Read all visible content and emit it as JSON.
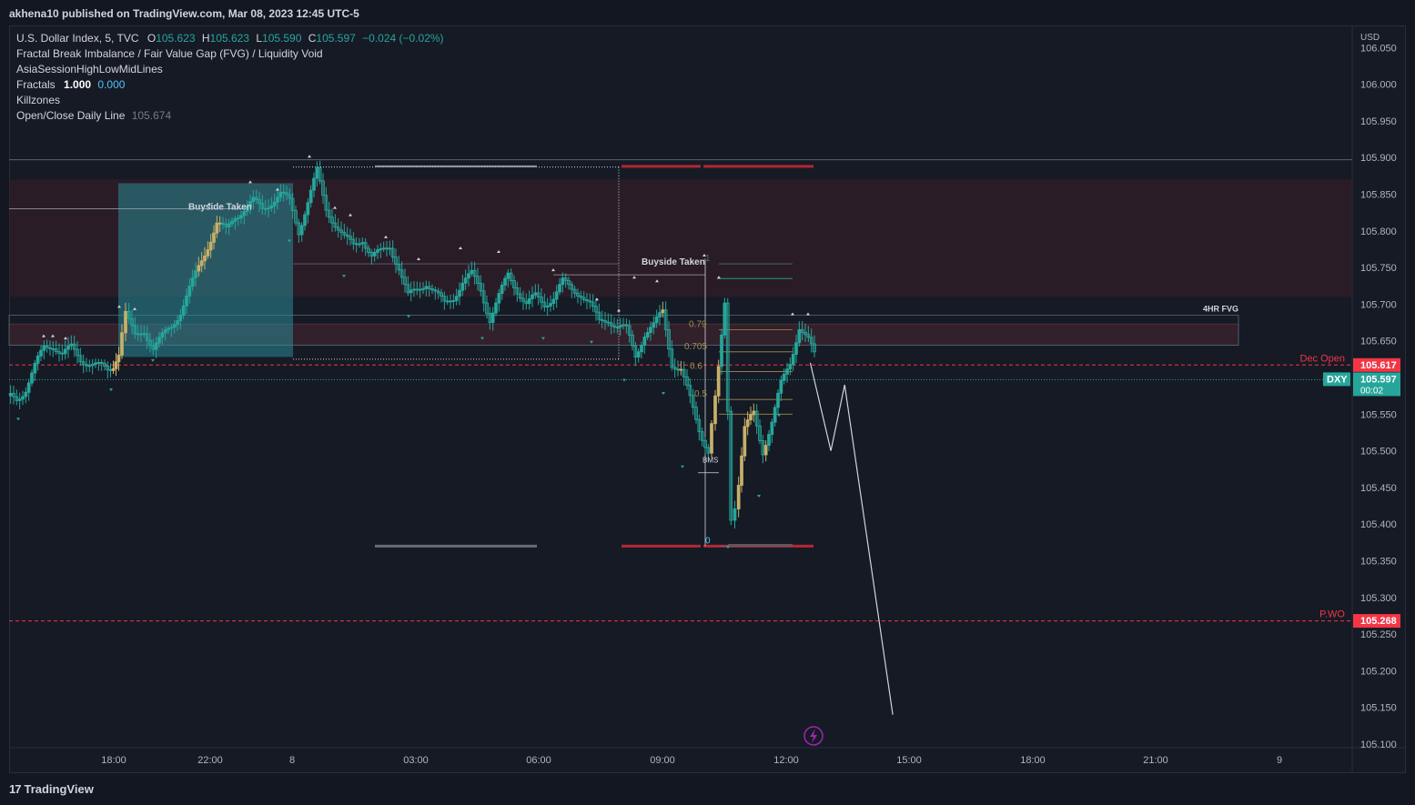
{
  "header": {
    "publisher": "akhena10 published on TradingView.com, Mar 08, 2023 12:45 UTC-5"
  },
  "legend": {
    "symbol": "U.S. Dollar Index, 5, TVC",
    "ohlc": [
      {
        "k": "O",
        "v": "105.623"
      },
      {
        "k": "H",
        "v": "105.623"
      },
      {
        "k": "L",
        "v": "105.590"
      },
      {
        "k": "C",
        "v": "105.597"
      }
    ],
    "change": "−0.024 (−0.02%)",
    "indicators": [
      {
        "name": "Fractal Break Imbalance / Fair Value Gap (FVG) / Liquidity Void"
      },
      {
        "name": "AsiaSessionHighLowMidLines"
      },
      {
        "name": "Fractals",
        "v1": "1.000",
        "v2": "0.000"
      },
      {
        "name": "Killzones"
      },
      {
        "name": "Open/Close Daily Line",
        "v3": "105.674"
      }
    ]
  },
  "colors": {
    "bg": "#161a25",
    "up": "#26a69a",
    "down": "#26a69a",
    "killzone": "#c7b06a",
    "red": "#f23645",
    "grid": "#2a2e39",
    "accent": "#4fc3f7"
  },
  "chart_data": {
    "type": "candlestick",
    "symbol": "DXY",
    "currency": "USD",
    "ylim": [
      105.1,
      106.05
    ],
    "y_ticks": [
      "106.050",
      "106.000",
      "105.950",
      "105.900",
      "105.850",
      "105.800",
      "105.750",
      "105.700",
      "105.650",
      "105.600",
      "105.550",
      "105.500",
      "105.450",
      "105.400",
      "105.350",
      "105.300",
      "105.250",
      "105.200",
      "105.150",
      "105.100"
    ],
    "x_ticks": [
      "18:00",
      "22:00",
      "8",
      "03:00",
      "06:00",
      "09:00",
      "12:00",
      "15:00",
      "18:00",
      "21:00",
      "9"
    ],
    "price_labels": [
      {
        "name": "Dec Open",
        "value": "105.617",
        "color": "#f23645"
      },
      {
        "name": "DXY",
        "value": "105.597",
        "sub": "00:02",
        "color": "#26a69a"
      },
      {
        "name": "P.WO",
        "value": "105.268",
        "color": "#f23645"
      }
    ],
    "annotations": [
      {
        "text": "Buyside Taken",
        "price": 105.825
      },
      {
        "text": "Buyside Taken",
        "price": 105.75
      },
      {
        "text": "4HR FVG",
        "price": 105.685
      },
      {
        "text": "BMS",
        "price": 105.48
      },
      {
        "text": "0.79",
        "price": 105.665
      },
      {
        "text": "0.705",
        "price": 105.635
      },
      {
        "text": "0.5",
        "price": 105.57
      },
      {
        "text": "0.6",
        "price": 105.608
      },
      {
        "text": "1",
        "price": 105.755
      },
      {
        "text": "0",
        "price": 105.37
      }
    ],
    "forecast_path": [
      {
        "time": "12:35",
        "price": 105.62
      },
      {
        "time": "13:05",
        "price": 105.5
      },
      {
        "time": "13:25",
        "price": 105.59
      },
      {
        "time": "14:35",
        "price": 105.14
      }
    ],
    "candles": []
  },
  "footer": {
    "brand": "TradingView"
  }
}
